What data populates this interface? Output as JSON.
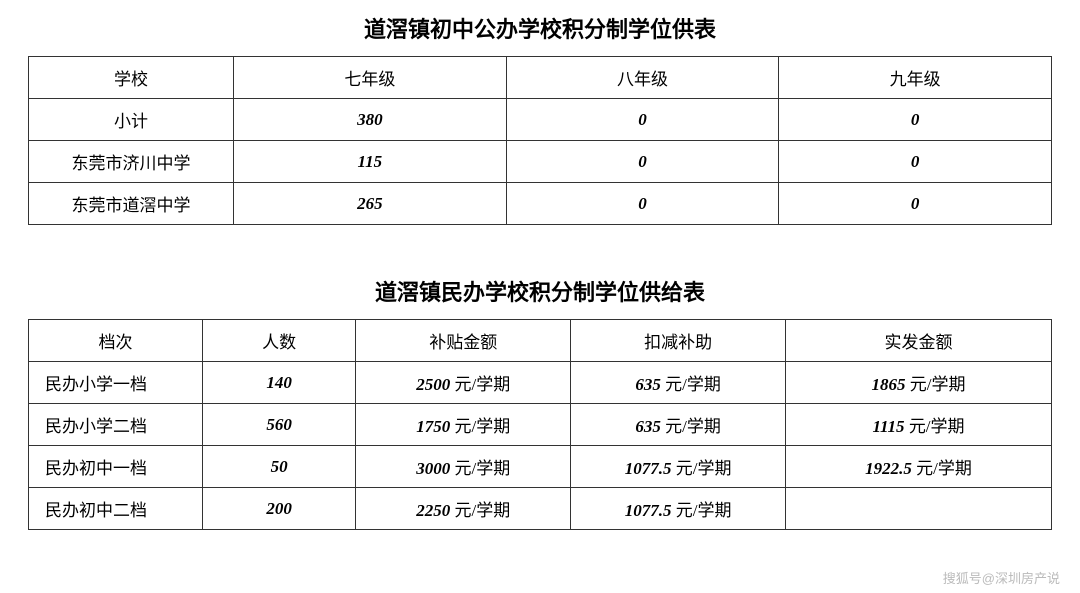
{
  "table1": {
    "title": "道滘镇初中公办学校积分制学位供表",
    "columns": [
      "学校",
      "七年级",
      "八年级",
      "九年级"
    ],
    "rows": [
      {
        "label": "小计",
        "v1": "380",
        "v2": "0",
        "v3": "0"
      },
      {
        "label": "东莞市济川中学",
        "v1": "115",
        "v2": "0",
        "v3": "0"
      },
      {
        "label": "东莞市道滘中学",
        "v1": "265",
        "v2": "0",
        "v3": "0"
      }
    ],
    "col_widths_pct": [
      20,
      26.6,
      26.6,
      26.6
    ],
    "border_color": "#333333",
    "font_size": 17,
    "title_fontsize": 22
  },
  "table2": {
    "title": "道滘镇民办学校积分制学位供给表",
    "columns": [
      "档次",
      "人数",
      "补贴金额",
      "扣减补助",
      "实发金额"
    ],
    "unit_suffix": " 元/学期",
    "rows": [
      {
        "label": "民办小学一档",
        "count": "140",
        "subsidy": "2500",
        "deduction": "635",
        "actual": "1865"
      },
      {
        "label": "民办小学二档",
        "count": "560",
        "subsidy": "1750",
        "deduction": "635",
        "actual": "1115"
      },
      {
        "label": "民办初中一档",
        "count": "50",
        "subsidy": "3000",
        "deduction": "1077.5",
        "actual": "1922.5"
      },
      {
        "label": "民办初中二档",
        "count": "200",
        "subsidy": "2250",
        "deduction": "1077.5",
        "actual": ""
      }
    ],
    "col_widths_pct": [
      17,
      15,
      21,
      21,
      26
    ],
    "border_color": "#333333",
    "font_size": 17,
    "title_fontsize": 22
  },
  "watermark": "搜狐号@深圳房产说",
  "colors": {
    "background": "#ffffff",
    "text": "#000000",
    "border": "#333333",
    "watermark": "#bbbbbb"
  }
}
